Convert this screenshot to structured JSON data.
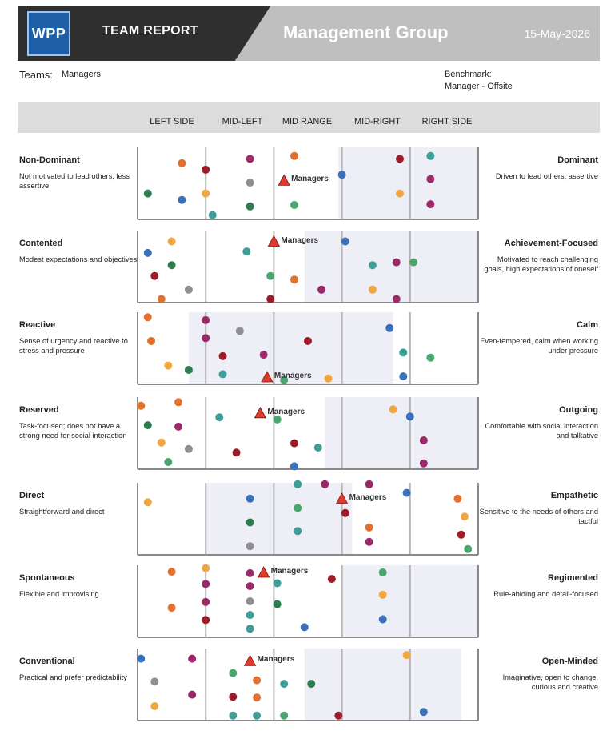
{
  "header": {
    "logo": "WPP",
    "report_title": "TEAM REPORT",
    "group_title": "Management Group",
    "date": "15-May-2026"
  },
  "info": {
    "teams_label": "Teams:",
    "teams_value": "Managers",
    "benchmark_label": "Benchmark:",
    "benchmark_value": "Manager - Offsite"
  },
  "columns": [
    "LEFT SIDE",
    "MID-LEFT",
    "MID RANGE",
    "MID-RIGHT",
    "RIGHT SIDE"
  ],
  "colors": {
    "orange": "#e0712f",
    "yellow": "#f0a642",
    "crimson": "#9e1c2a",
    "magenta": "#9c2a6b",
    "blue": "#3a6fba",
    "teal": "#3e9d96",
    "green": "#2f7d4e",
    "mint": "#4aa56f",
    "gray": "#8f8f8f",
    "marker": "#e03a2e",
    "band": "#eeeef6"
  },
  "marker_label": "Managers",
  "traits": [
    {
      "left_title": "Non-Dominant",
      "left_desc": "Not motivated to lead others, less assertive",
      "right_title": "Dominant",
      "right_desc": "Driven to lead others, assertive",
      "band": [
        0.59,
        1.0
      ],
      "marker": [
        0.43,
        0.46
      ],
      "dots": [
        [
          0.13,
          0.22,
          "orange"
        ],
        [
          0.2,
          0.31,
          "crimson"
        ],
        [
          0.03,
          0.64,
          "green"
        ],
        [
          0.13,
          0.73,
          "blue"
        ],
        [
          0.2,
          0.64,
          "yellow"
        ],
        [
          0.22,
          0.94,
          "teal"
        ],
        [
          0.33,
          0.16,
          "magenta"
        ],
        [
          0.33,
          0.49,
          "gray"
        ],
        [
          0.33,
          0.82,
          "green"
        ],
        [
          0.46,
          0.12,
          "orange"
        ],
        [
          0.46,
          0.8,
          "mint"
        ],
        [
          0.6,
          0.38,
          "blue"
        ],
        [
          0.77,
          0.16,
          "crimson"
        ],
        [
          0.77,
          0.64,
          "yellow"
        ],
        [
          0.86,
          0.12,
          "teal"
        ],
        [
          0.86,
          0.44,
          "magenta"
        ],
        [
          0.86,
          0.79,
          "magenta"
        ]
      ]
    },
    {
      "left_title": "Contented",
      "left_desc": "Modest expectations and objectives",
      "right_title": "Achievement-Focused",
      "right_desc": "Motivated to reach challenging goals, high expectations of oneself",
      "band": [
        0.49,
        1.0
      ],
      "marker": [
        0.4,
        0.15
      ],
      "dots": [
        [
          0.1,
          0.15,
          "yellow"
        ],
        [
          0.03,
          0.31,
          "blue"
        ],
        [
          0.1,
          0.48,
          "green"
        ],
        [
          0.05,
          0.63,
          "crimson"
        ],
        [
          0.15,
          0.82,
          "gray"
        ],
        [
          0.07,
          0.95,
          "orange"
        ],
        [
          0.32,
          0.29,
          "teal"
        ],
        [
          0.39,
          0.63,
          "mint"
        ],
        [
          0.39,
          0.95,
          "crimson"
        ],
        [
          0.46,
          0.68,
          "orange"
        ],
        [
          0.54,
          0.82,
          "magenta"
        ],
        [
          0.61,
          0.15,
          "blue"
        ],
        [
          0.69,
          0.48,
          "teal"
        ],
        [
          0.76,
          0.44,
          "magenta"
        ],
        [
          0.81,
          0.44,
          "mint"
        ],
        [
          0.69,
          0.82,
          "yellow"
        ],
        [
          0.76,
          0.95,
          "magenta"
        ]
      ]
    },
    {
      "left_title": "Reactive",
      "left_desc": "Sense of urgency and reactive to stress and pressure",
      "right_title": "Calm",
      "right_desc": "Even-tempered, calm when working under pressure",
      "band": [
        0.15,
        0.75
      ],
      "marker": [
        0.38,
        0.9
      ],
      "dots": [
        [
          0.03,
          0.07,
          "orange"
        ],
        [
          0.04,
          0.4,
          "orange"
        ],
        [
          0.09,
          0.74,
          "yellow"
        ],
        [
          0.15,
          0.8,
          "green"
        ],
        [
          0.2,
          0.11,
          "magenta"
        ],
        [
          0.2,
          0.36,
          "magenta"
        ],
        [
          0.25,
          0.61,
          "crimson"
        ],
        [
          0.3,
          0.26,
          "gray"
        ],
        [
          0.25,
          0.86,
          "teal"
        ],
        [
          0.37,
          0.59,
          "magenta"
        ],
        [
          0.43,
          0.94,
          "mint"
        ],
        [
          0.5,
          0.4,
          "crimson"
        ],
        [
          0.56,
          0.92,
          "yellow"
        ],
        [
          0.74,
          0.22,
          "blue"
        ],
        [
          0.78,
          0.56,
          "teal"
        ],
        [
          0.86,
          0.63,
          "mint"
        ],
        [
          0.78,
          0.89,
          "blue"
        ]
      ]
    },
    {
      "left_title": "Reserved",
      "left_desc": "Task-focused; does not have a strong need for social interaction",
      "right_title": "Outgoing",
      "right_desc": "Comfortable with social interaction and talkative",
      "band": [
        0.55,
        1.0
      ],
      "marker": [
        0.36,
        0.22
      ],
      "dots": [
        [
          0.01,
          0.12,
          "orange"
        ],
        [
          0.12,
          0.07,
          "orange"
        ],
        [
          0.03,
          0.39,
          "green"
        ],
        [
          0.12,
          0.41,
          "magenta"
        ],
        [
          0.07,
          0.63,
          "yellow"
        ],
        [
          0.15,
          0.72,
          "gray"
        ],
        [
          0.09,
          0.9,
          "mint"
        ],
        [
          0.24,
          0.28,
          "teal"
        ],
        [
          0.29,
          0.77,
          "crimson"
        ],
        [
          0.41,
          0.31,
          "mint"
        ],
        [
          0.46,
          0.64,
          "crimson"
        ],
        [
          0.53,
          0.7,
          "teal"
        ],
        [
          0.46,
          0.96,
          "blue"
        ],
        [
          0.75,
          0.17,
          "yellow"
        ],
        [
          0.8,
          0.27,
          "blue"
        ],
        [
          0.84,
          0.6,
          "magenta"
        ],
        [
          0.84,
          0.92,
          "magenta"
        ]
      ]
    },
    {
      "left_title": "Direct",
      "left_desc": "Straightforward and direct",
      "right_title": "Empathetic",
      "right_desc": "Sensitive to the needs of others and tactful",
      "band": [
        0.2,
        0.63
      ],
      "marker": [
        0.6,
        0.22
      ],
      "dots": [
        [
          0.03,
          0.27,
          "yellow"
        ],
        [
          0.33,
          0.22,
          "blue"
        ],
        [
          0.33,
          0.55,
          "green"
        ],
        [
          0.33,
          0.88,
          "gray"
        ],
        [
          0.47,
          0.02,
          "teal"
        ],
        [
          0.47,
          0.35,
          "mint"
        ],
        [
          0.47,
          0.67,
          "teal"
        ],
        [
          0.55,
          0.02,
          "magenta"
        ],
        [
          0.61,
          0.42,
          "crimson"
        ],
        [
          0.68,
          0.02,
          "magenta"
        ],
        [
          0.68,
          0.62,
          "orange"
        ],
        [
          0.68,
          0.82,
          "magenta"
        ],
        [
          0.79,
          0.14,
          "blue"
        ],
        [
          0.94,
          0.22,
          "orange"
        ],
        [
          0.96,
          0.47,
          "yellow"
        ],
        [
          0.95,
          0.72,
          "crimson"
        ],
        [
          0.97,
          0.92,
          "mint"
        ]
      ]
    },
    {
      "left_title": "Spontaneous",
      "left_desc": "Flexible and improvising",
      "right_title": "Regimented",
      "right_desc": "Rule-abiding and detail-focused",
      "band": [
        0.6,
        1.0
      ],
      "marker": [
        0.37,
        0.1
      ],
      "dots": [
        [
          0.1,
          0.09,
          "orange"
        ],
        [
          0.2,
          0.04,
          "yellow"
        ],
        [
          0.2,
          0.26,
          "magenta"
        ],
        [
          0.2,
          0.51,
          "magenta"
        ],
        [
          0.1,
          0.59,
          "orange"
        ],
        [
          0.2,
          0.76,
          "crimson"
        ],
        [
          0.33,
          0.11,
          "magenta"
        ],
        [
          0.33,
          0.29,
          "magenta"
        ],
        [
          0.33,
          0.5,
          "gray"
        ],
        [
          0.33,
          0.69,
          "teal"
        ],
        [
          0.33,
          0.88,
          "teal"
        ],
        [
          0.41,
          0.25,
          "teal"
        ],
        [
          0.41,
          0.54,
          "green"
        ],
        [
          0.49,
          0.86,
          "blue"
        ],
        [
          0.57,
          0.19,
          "crimson"
        ],
        [
          0.72,
          0.1,
          "mint"
        ],
        [
          0.72,
          0.41,
          "yellow"
        ],
        [
          0.72,
          0.75,
          "blue"
        ]
      ]
    },
    {
      "left_title": "Conventional",
      "left_desc": "Practical and prefer predictability",
      "right_title": "Open-Minded",
      "right_desc": "Imaginative, open to change, curious and creative",
      "band": [
        0.49,
        0.95
      ],
      "marker": [
        0.33,
        0.17
      ],
      "dots": [
        [
          0.01,
          0.14,
          "blue"
        ],
        [
          0.16,
          0.14,
          "magenta"
        ],
        [
          0.05,
          0.46,
          "gray"
        ],
        [
          0.16,
          0.64,
          "magenta"
        ],
        [
          0.05,
          0.8,
          "yellow"
        ],
        [
          0.28,
          0.34,
          "mint"
        ],
        [
          0.35,
          0.44,
          "orange"
        ],
        [
          0.28,
          0.67,
          "crimson"
        ],
        [
          0.35,
          0.68,
          "orange"
        ],
        [
          0.28,
          0.93,
          "teal"
        ],
        [
          0.35,
          0.93,
          "teal"
        ],
        [
          0.43,
          0.49,
          "teal"
        ],
        [
          0.51,
          0.49,
          "green"
        ],
        [
          0.43,
          0.93,
          "mint"
        ],
        [
          0.59,
          0.93,
          "crimson"
        ],
        [
          0.79,
          0.09,
          "yellow"
        ],
        [
          0.84,
          0.88,
          "blue"
        ]
      ]
    }
  ]
}
